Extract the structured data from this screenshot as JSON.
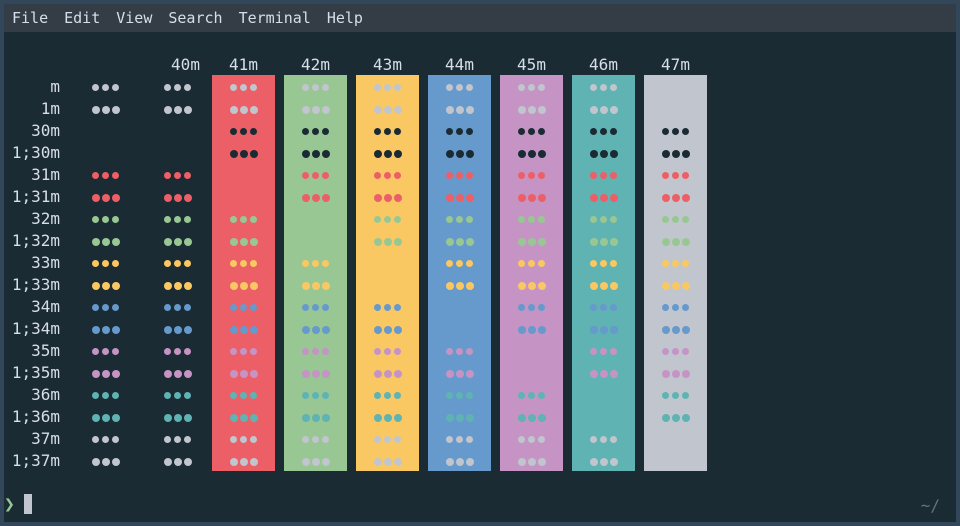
{
  "menu": [
    "File",
    "Edit",
    "View",
    "Search",
    "Terminal",
    "Help"
  ],
  "columns": [
    {
      "label": "",
      "bg": null
    },
    {
      "label": "40m",
      "bg": null
    },
    {
      "label": "41m",
      "bg": "#ec5f67"
    },
    {
      "label": "42m",
      "bg": "#99c794"
    },
    {
      "label": "43m",
      "bg": "#fac863"
    },
    {
      "label": "44m",
      "bg": "#6699cc"
    },
    {
      "label": "45m",
      "bg": "#c594c5"
    },
    {
      "label": "46m",
      "bg": "#5fb3b3"
    },
    {
      "label": "47m",
      "bg": "#c0c5ce"
    }
  ],
  "rows": [
    {
      "label": "m",
      "fg": "#c0c5ce"
    },
    {
      "label": "1m",
      "fg": "#c0c5ce"
    },
    {
      "label": "30m",
      "fg": "#1b2b34"
    },
    {
      "label": "1;30m",
      "fg": "#1b2b34"
    },
    {
      "label": "31m",
      "fg": "#ec5f67"
    },
    {
      "label": "1;31m",
      "fg": "#ec5f67"
    },
    {
      "label": "32m",
      "fg": "#99c794"
    },
    {
      "label": "1;32m",
      "fg": "#99c794"
    },
    {
      "label": "33m",
      "fg": "#fac863"
    },
    {
      "label": "1;33m",
      "fg": "#fac863"
    },
    {
      "label": "34m",
      "fg": "#6699cc"
    },
    {
      "label": "1;34m",
      "fg": "#6699cc"
    },
    {
      "label": "35m",
      "fg": "#c594c5"
    },
    {
      "label": "1;35m",
      "fg": "#c594c5"
    },
    {
      "label": "36m",
      "fg": "#5fb3b3"
    },
    {
      "label": "1;36m",
      "fg": "#5fb3b3"
    },
    {
      "label": "37m",
      "fg": "#c0c5ce"
    },
    {
      "label": "1;37m",
      "fg": "#c0c5ce"
    }
  ],
  "prompt": {
    "symbol": "❯",
    "cwd": "~/"
  }
}
